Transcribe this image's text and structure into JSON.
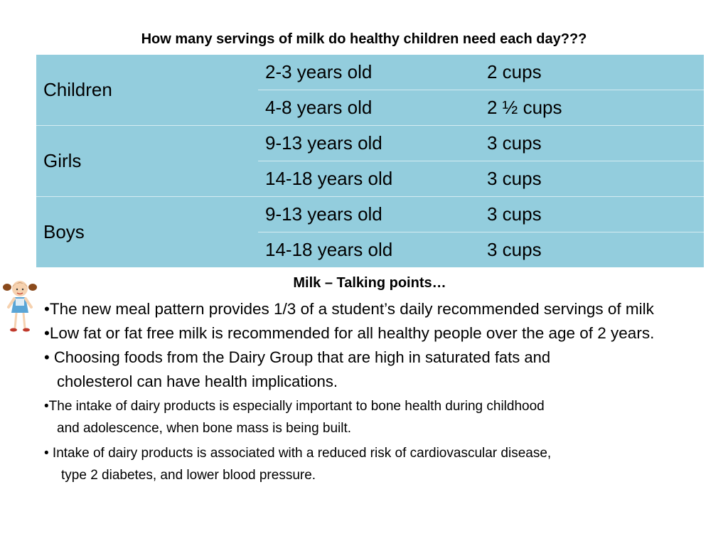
{
  "title": "How many servings of milk do healthy children need each day???",
  "table": {
    "groups": [
      {
        "label": "Children",
        "rows": [
          {
            "age": "2-3 years old",
            "cups": "2 cups"
          },
          {
            "age": "4-8 years old",
            "cups": "2 ½ cups"
          }
        ]
      },
      {
        "label": "Girls",
        "rows": [
          {
            "age": "9-13 years old",
            "cups": "3 cups"
          },
          {
            "age": "14-18 years old",
            "cups": "3 cups"
          }
        ]
      },
      {
        "label": "Boys",
        "rows": [
          {
            "age": "9-13 years old",
            "cups": "3 cups"
          },
          {
            "age": "14-18 years old",
            "cups": "3 cups"
          }
        ]
      }
    ]
  },
  "talking_points": {
    "heading": "Milk – Talking points…",
    "items": [
      {
        "lines": [
          "•The new meal pattern provides 1/3 of a student’s daily recommended servings of milk"
        ]
      },
      {
        "lines": [
          "•Low fat or fat free milk is recommended for all healthy people over the age of 2 years."
        ]
      },
      {
        "lines": [
          "• Choosing foods from the Dairy Group that are high in saturated fats and",
          "cholesterol can have health implications."
        ]
      },
      {
        "lines": [
          "•The intake of dairy products is especially important to bone health during childhood",
          "and adolescence, when bone mass is being built."
        ]
      },
      {
        "lines": [
          "•  Intake of dairy products is associated with a reduced risk of cardiovascular disease,",
          "type 2 diabetes, and lower blood pressure."
        ]
      }
    ]
  },
  "colors": {
    "table_fill": "#93cddd",
    "table_divider": "#d6ecf2"
  },
  "icons": {
    "clipart": "girl-clipart-icon"
  }
}
